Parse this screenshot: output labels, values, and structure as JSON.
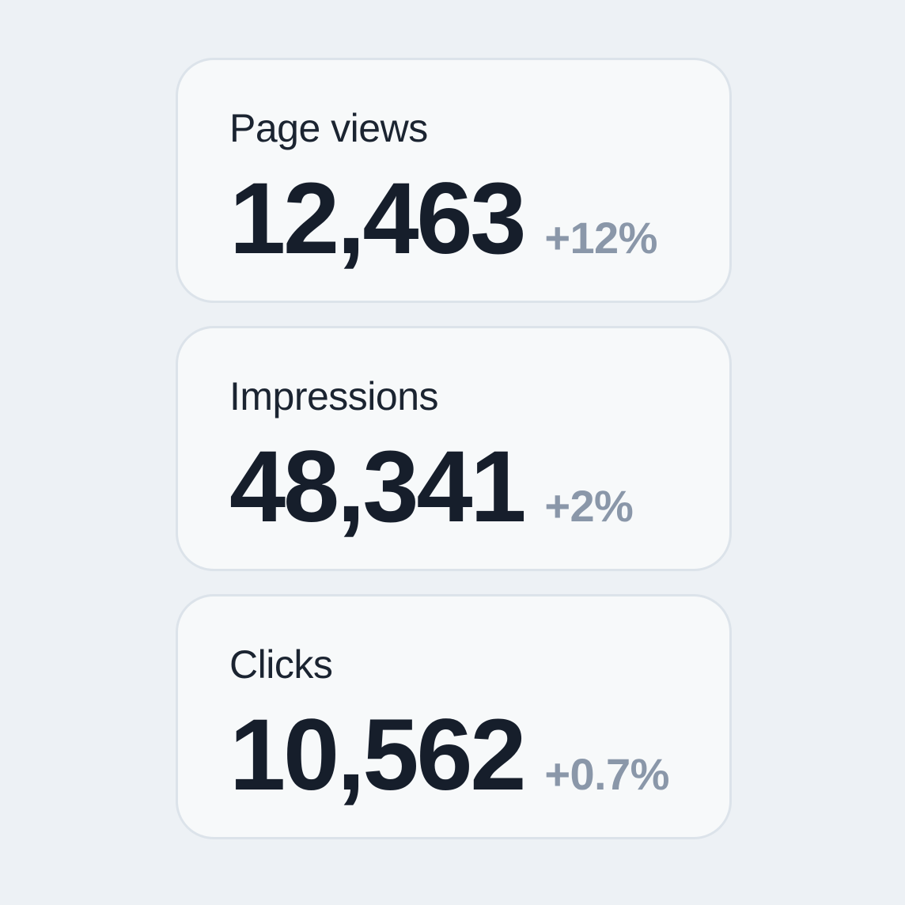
{
  "colors": {
    "page_background": "#edf1f5",
    "card_background": "#f7f9fa",
    "card_border": "#dce3ea",
    "label_text": "#1b2431",
    "value_text": "#161e2b",
    "delta_text": "#8a97a9"
  },
  "cards": [
    {
      "label": "Page views",
      "value": "12,463",
      "delta": "+12%"
    },
    {
      "label": "Impressions",
      "value": "48,341",
      "delta": "+2%"
    },
    {
      "label": "Clicks",
      "value": "10,562",
      "delta": "+0.7%"
    }
  ]
}
